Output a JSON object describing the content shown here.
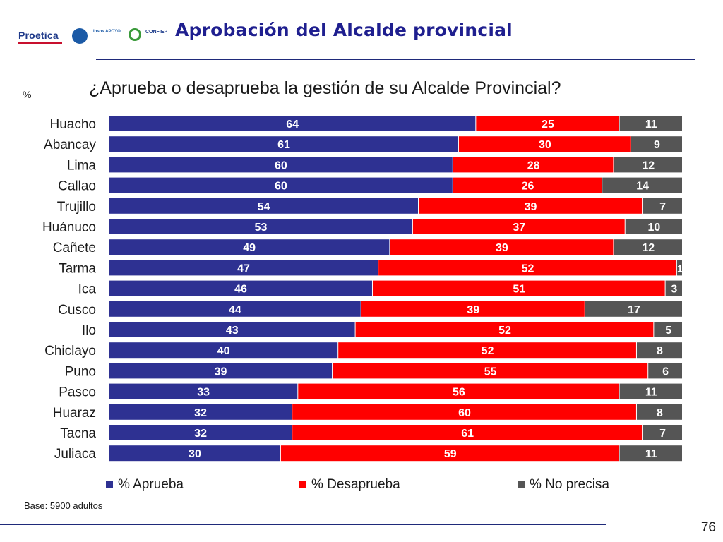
{
  "header": {
    "title": "Aprobación del Alcalde provincial",
    "logos": {
      "proetica": "Proetica",
      "ipsos": "Ipsos APOYO",
      "confiep": "CONFIEP"
    }
  },
  "question": "¿Aprueba o desaprueba la gestión de su Alcalde Provincial?",
  "unit": "%",
  "footer": {
    "base": "Base: 5900 adultos",
    "page_number": "76"
  },
  "colors": {
    "aprueba": "#2e3192",
    "desaprueba": "#ff0000",
    "no_precisa": "#555555",
    "title": "#1f1f8f"
  },
  "chart_data": {
    "type": "bar",
    "orientation": "horizontal",
    "stacked": true,
    "categories": [
      "Huacho",
      "Abancay",
      "Lima",
      "Callao",
      "Trujillo",
      "Huánuco",
      "Cañete",
      "Tarma",
      "Ica",
      "Cusco",
      "Ilo",
      "Chiclayo",
      "Puno",
      "Pasco",
      "Huaraz",
      "Tacna",
      "Juliaca"
    ],
    "series": [
      {
        "name": "% Aprueba",
        "color": "#2e3192",
        "values": [
          64,
          61,
          60,
          60,
          54,
          53,
          49,
          47,
          46,
          44,
          43,
          40,
          39,
          33,
          32,
          32,
          30
        ]
      },
      {
        "name": "% Desaprueba",
        "color": "#ff0000",
        "values": [
          25,
          30,
          28,
          26,
          39,
          37,
          39,
          52,
          51,
          39,
          52,
          52,
          55,
          56,
          60,
          61,
          59
        ]
      },
      {
        "name": "% No precisa",
        "color": "#555555",
        "values": [
          11,
          9,
          12,
          14,
          7,
          10,
          12,
          1,
          3,
          17,
          5,
          8,
          6,
          11,
          8,
          7,
          11
        ]
      }
    ],
    "xlim": [
      0,
      100
    ],
    "legend_position": "bottom",
    "grid": false
  }
}
